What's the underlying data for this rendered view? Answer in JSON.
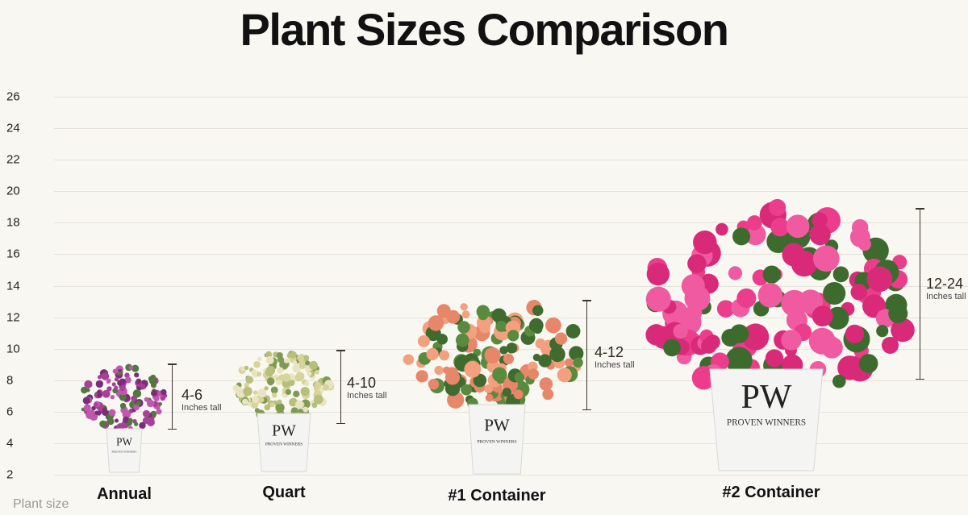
{
  "title": "Plant Sizes Comparison",
  "chart_data": {
    "type": "range-comparison",
    "title": "Plant Sizes Comparison",
    "xlabel": "Plant size",
    "ylabel": "",
    "yticks": [
      2,
      4,
      6,
      8,
      10,
      12,
      14,
      16,
      18,
      20,
      22,
      24,
      26
    ],
    "ylim": [
      2,
      26
    ],
    "grid": true,
    "categories": [
      "Annual",
      "Quart",
      "#1 Container",
      "#2 Container"
    ],
    "ranges": [
      {
        "category": "Annual",
        "label": "4-6",
        "unit": "Inches tall",
        "min": 4,
        "max": 6
      },
      {
        "category": "Quart",
        "label": "4-10",
        "unit": "Inches tall",
        "min": 4,
        "max": 10
      },
      {
        "category": "#1 Container",
        "label": "4-12",
        "unit": "Inches tall",
        "min": 4,
        "max": 12
      },
      {
        "category": "#2 Container",
        "label": "12-24",
        "unit": "Inches tall",
        "min": 12,
        "max": 24
      }
    ]
  },
  "pot_logo": {
    "mark": "PW",
    "brand": "PROVEN WINNERS",
    "sub": "COLOR CHOICE"
  },
  "colors": {
    "background": "#f8f7f2",
    "bar": "#3b352c",
    "annual_flower": "#a8409a",
    "quart_foliage": "#c9c98a",
    "container1_flower": "#f09a7a",
    "container2_flower": "#ec3d8c"
  }
}
